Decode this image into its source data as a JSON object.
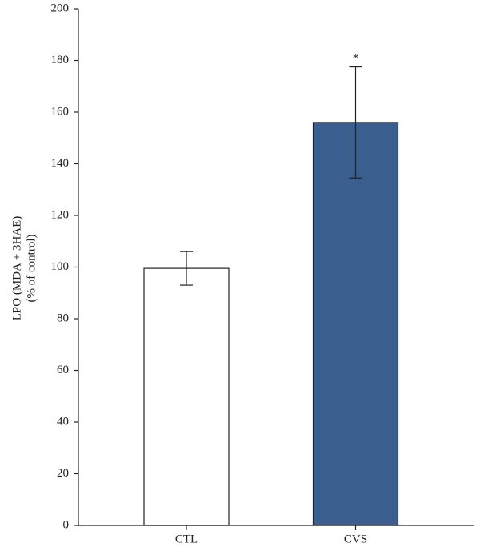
{
  "chart_data": {
    "type": "bar",
    "ylabel": [
      "LPO (MDA + 3HAE)",
      "(% of control)"
    ],
    "categories": [
      "CTL",
      "CVS"
    ],
    "values": [
      99.5,
      156
    ],
    "errors": [
      6.5,
      21.5
    ],
    "colors": [
      "#ffffff",
      "#3a5f8f"
    ],
    "ylim": [
      0,
      200
    ],
    "yticks": [
      0,
      20,
      40,
      60,
      80,
      100,
      120,
      140,
      160,
      180,
      200
    ],
    "annotations": [
      {
        "text": "*",
        "x": "CVS"
      }
    ]
  }
}
